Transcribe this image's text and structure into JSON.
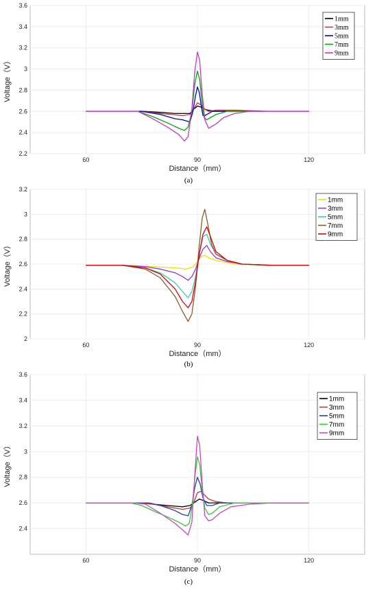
{
  "chart_data": [
    {
      "type": "line",
      "caption": "(a)",
      "xlabel": "Distance（mm）",
      "ylabel": "Voltage（V）",
      "xlim": [
        45,
        135
      ],
      "ylim": [
        2.2,
        3.6
      ],
      "xticks": [
        "60",
        "90",
        "120"
      ],
      "yticks": [
        "2.2",
        "2.4",
        "2.6",
        "2.8",
        "3",
        "3.2",
        "3.4",
        "3.6"
      ],
      "grid": true,
      "legend": "top-right",
      "series": [
        {
          "name": "1mm",
          "color": "#000000",
          "x": [
            60,
            70,
            76,
            80,
            84,
            86,
            88,
            89,
            90,
            91,
            92,
            93,
            95,
            100,
            110,
            120
          ],
          "y": [
            2.6,
            2.6,
            2.6,
            2.59,
            2.58,
            2.58,
            2.58,
            2.62,
            2.65,
            2.64,
            2.62,
            2.61,
            2.6,
            2.6,
            2.6,
            2.6
          ]
        },
        {
          "name": "3mm",
          "color": "#c0392b",
          "x": [
            60,
            70,
            76,
            80,
            83,
            86,
            88,
            89,
            90,
            91,
            92,
            93,
            95,
            100,
            110,
            120
          ],
          "y": [
            2.6,
            2.6,
            2.6,
            2.58,
            2.57,
            2.56,
            2.57,
            2.62,
            2.68,
            2.66,
            2.62,
            2.6,
            2.61,
            2.61,
            2.6,
            2.6
          ]
        },
        {
          "name": "5mm",
          "color": "#0000cc",
          "x": [
            60,
            70,
            75,
            80,
            84,
            86,
            87,
            88,
            88.8,
            89.5,
            90,
            90.5,
            91,
            91.5,
            92,
            93,
            94,
            96,
            100,
            110,
            120
          ],
          "y": [
            2.6,
            2.6,
            2.6,
            2.57,
            2.53,
            2.52,
            2.51,
            2.5,
            2.6,
            2.75,
            2.83,
            2.78,
            2.66,
            2.56,
            2.56,
            2.58,
            2.6,
            2.6,
            2.6,
            2.6,
            2.6
          ]
        },
        {
          "name": "7mm",
          "color": "#00aa00",
          "x": [
            60,
            70,
            74,
            78,
            82,
            85,
            86.5,
            87.5,
            88.5,
            89.3,
            90,
            90.6,
            91.2,
            91.8,
            92.5,
            93.5,
            95,
            98,
            102,
            110,
            120
          ],
          "y": [
            2.6,
            2.6,
            2.6,
            2.55,
            2.49,
            2.44,
            2.42,
            2.45,
            2.6,
            2.86,
            2.98,
            2.9,
            2.7,
            2.54,
            2.52,
            2.54,
            2.57,
            2.6,
            2.6,
            2.6,
            2.6
          ]
        },
        {
          "name": "9mm",
          "color": "#cc33cc",
          "x": [
            60,
            70,
            74,
            78,
            82,
            85,
            86.5,
            87.5,
            88.5,
            89.3,
            90,
            90.6,
            91.2,
            92,
            93,
            95,
            97,
            100,
            104,
            110,
            120
          ],
          "y": [
            2.6,
            2.6,
            2.6,
            2.53,
            2.45,
            2.38,
            2.32,
            2.36,
            2.62,
            2.98,
            3.16,
            3.08,
            2.8,
            2.52,
            2.44,
            2.48,
            2.54,
            2.58,
            2.6,
            2.6,
            2.6
          ]
        }
      ]
    },
    {
      "type": "line",
      "caption": "(b)",
      "xlabel": "Distance（mm）",
      "ylabel": "Voltage（V）",
      "xlim": [
        45,
        135
      ],
      "ylim": [
        2.0,
        3.2
      ],
      "xticks": [
        "60",
        "90",
        "120"
      ],
      "yticks": [
        "2",
        "2.2",
        "2.4",
        "2.6",
        "2.8",
        "3",
        "3.2"
      ],
      "grid": true,
      "legend": "top-right",
      "series": [
        {
          "name": "1mm",
          "color": "#e6e600",
          "x": [
            60,
            70,
            78,
            84,
            87,
            89,
            90,
            91,
            92,
            93,
            95,
            100,
            110,
            120
          ],
          "y": [
            2.59,
            2.59,
            2.58,
            2.57,
            2.56,
            2.58,
            2.62,
            2.66,
            2.67,
            2.65,
            2.63,
            2.6,
            2.59,
            2.59
          ]
        },
        {
          "name": "3mm",
          "color": "#9933cc",
          "x": [
            60,
            70,
            76,
            80,
            84,
            86,
            87.5,
            88.5,
            89.5,
            90.5,
            91.5,
            92.5,
            93.5,
            95,
            98,
            102,
            110,
            120
          ],
          "y": [
            2.59,
            2.59,
            2.58,
            2.56,
            2.53,
            2.5,
            2.47,
            2.5,
            2.56,
            2.65,
            2.72,
            2.75,
            2.7,
            2.65,
            2.62,
            2.6,
            2.59,
            2.59
          ]
        },
        {
          "name": "5mm",
          "color": "#33cccc",
          "x": [
            60,
            70,
            76,
            80,
            84,
            86,
            87.5,
            88.5,
            89.5,
            90.5,
            91.5,
            92.5,
            93.5,
            95,
            98,
            102,
            110,
            120
          ],
          "y": [
            2.59,
            2.59,
            2.57,
            2.53,
            2.45,
            2.38,
            2.33,
            2.38,
            2.5,
            2.68,
            2.82,
            2.84,
            2.76,
            2.68,
            2.63,
            2.6,
            2.59,
            2.59
          ]
        },
        {
          "name": "7mm",
          "color": "#8b5a2b",
          "x": [
            60,
            70,
            76,
            80,
            84,
            86,
            87.5,
            88.5,
            89.5,
            90.5,
            91.3,
            92,
            92.8,
            93.8,
            95,
            98,
            102,
            110,
            120
          ],
          "y": [
            2.59,
            2.59,
            2.56,
            2.49,
            2.34,
            2.22,
            2.14,
            2.2,
            2.42,
            2.75,
            2.97,
            3.04,
            2.92,
            2.76,
            2.68,
            2.63,
            2.6,
            2.59,
            2.59
          ]
        },
        {
          "name": "9mm",
          "color": "#e00000",
          "x": [
            60,
            70,
            76,
            80,
            84,
            86,
            87.5,
            88.5,
            89.5,
            90.5,
            91.5,
            92.5,
            93.5,
            95,
            98,
            102,
            110,
            120
          ],
          "y": [
            2.59,
            2.59,
            2.57,
            2.52,
            2.4,
            2.3,
            2.25,
            2.3,
            2.46,
            2.68,
            2.84,
            2.9,
            2.82,
            2.7,
            2.63,
            2.6,
            2.59,
            2.59
          ]
        }
      ]
    },
    {
      "type": "line",
      "caption": "(c)",
      "xlabel": "Distance（mm）",
      "ylabel": "Voltage（V）",
      "xlim": [
        45,
        135
      ],
      "ylim": [
        2.2,
        3.6
      ],
      "xticks": [
        "60",
        "90",
        "120"
      ],
      "yticks": [
        "2.4",
        "2.6",
        "2.8",
        "3",
        "3.2",
        "3.4",
        "3.6"
      ],
      "grid": true,
      "legend": "top-right",
      "series": [
        {
          "name": "1mm",
          "color": "#000000",
          "x": [
            60,
            70,
            74,
            78,
            82,
            86,
            88,
            89.5,
            90.5,
            91.5,
            93,
            96,
            100,
            106,
            120
          ],
          "y": [
            2.6,
            2.6,
            2.6,
            2.59,
            2.58,
            2.57,
            2.58,
            2.61,
            2.63,
            2.62,
            2.6,
            2.6,
            2.6,
            2.6,
            2.6
          ]
        },
        {
          "name": "3mm",
          "color": "#c0392b",
          "x": [
            60,
            70,
            74,
            78,
            82,
            86,
            88,
            89,
            90,
            91,
            92,
            93,
            95,
            98,
            102,
            120
          ],
          "y": [
            2.6,
            2.6,
            2.6,
            2.59,
            2.57,
            2.55,
            2.56,
            2.6,
            2.68,
            2.69,
            2.66,
            2.63,
            2.61,
            2.6,
            2.6,
            2.6
          ]
        },
        {
          "name": "5mm",
          "color": "#1f3fb0",
          "x": [
            60,
            70,
            74,
            77,
            80,
            84,
            86,
            87.5,
            88.5,
            89.3,
            90,
            90.7,
            91.5,
            92.5,
            94,
            96,
            100,
            104,
            120
          ],
          "y": [
            2.6,
            2.6,
            2.6,
            2.6,
            2.58,
            2.54,
            2.51,
            2.5,
            2.58,
            2.72,
            2.8,
            2.75,
            2.64,
            2.58,
            2.58,
            2.6,
            2.6,
            2.6,
            2.6
          ]
        },
        {
          "name": "7mm",
          "color": "#33cc33",
          "x": [
            60,
            70,
            72,
            75,
            78,
            82,
            85,
            86.8,
            87.8,
            88.6,
            89.4,
            90,
            90.6,
            91.3,
            92,
            93,
            94,
            96,
            100,
            104,
            120
          ],
          "y": [
            2.6,
            2.6,
            2.6,
            2.58,
            2.54,
            2.49,
            2.45,
            2.42,
            2.44,
            2.58,
            2.82,
            2.96,
            2.9,
            2.7,
            2.56,
            2.51,
            2.52,
            2.57,
            2.6,
            2.6,
            2.6
          ]
        },
        {
          "name": "9mm",
          "color": "#cc44cc",
          "x": [
            60,
            70,
            73,
            76,
            80,
            84,
            86,
            87.5,
            88.5,
            89.3,
            90,
            90.6,
            91.3,
            92,
            93,
            94,
            96,
            99,
            104,
            110,
            120
          ],
          "y": [
            2.6,
            2.6,
            2.6,
            2.59,
            2.52,
            2.44,
            2.39,
            2.35,
            2.45,
            2.82,
            3.12,
            3.05,
            2.75,
            2.5,
            2.46,
            2.47,
            2.52,
            2.57,
            2.59,
            2.6,
            2.6
          ]
        }
      ]
    }
  ]
}
